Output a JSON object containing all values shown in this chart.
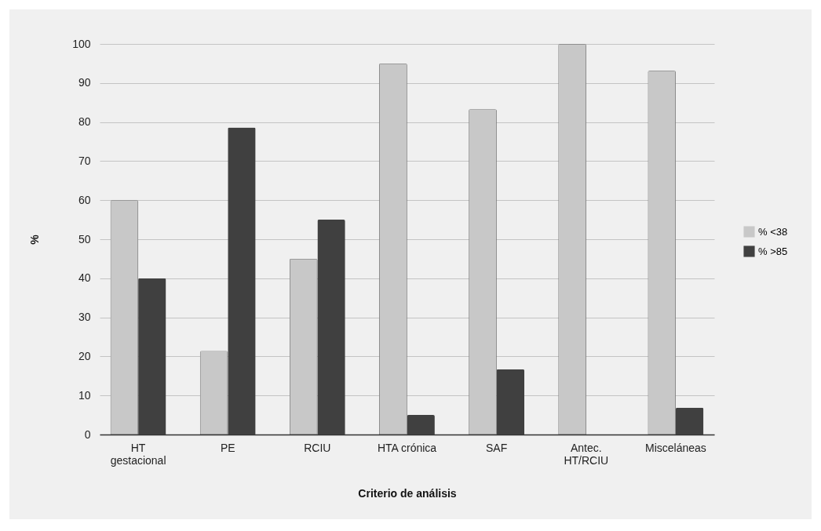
{
  "chart_data": {
    "type": "bar",
    "xlabel": "Criterio de análisis",
    "ylabel": "%",
    "categories": [
      "HT gestacional",
      "PE",
      "RCIU",
      "HTA crónica",
      "SAF",
      "Antec. HT/RCIU",
      "Misceláneas"
    ],
    "series": [
      {
        "name": "% <38",
        "color": "#c8c8c8",
        "values": [
          60,
          21.4,
          45,
          95,
          83.3,
          100,
          93.1
        ]
      },
      {
        "name": "% >85",
        "color": "#404040",
        "values": [
          40,
          78.6,
          55,
          5,
          16.7,
          0,
          6.9
        ]
      }
    ],
    "ylim": [
      0,
      100
    ],
    "yticks": [
      0,
      10,
      20,
      30,
      40,
      50,
      60,
      70,
      80,
      90,
      100
    ],
    "grid": "y",
    "legend": "right"
  }
}
